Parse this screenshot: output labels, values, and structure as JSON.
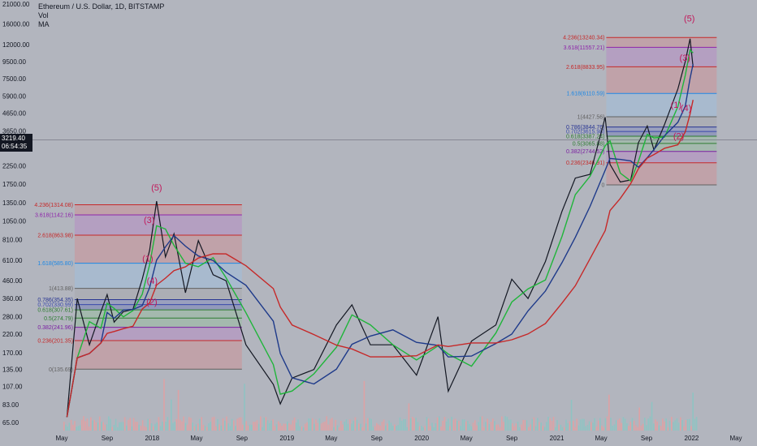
{
  "legend": {
    "title": "Ethereum / U.S. Dollar, 1D, BITSTAMP",
    "vol": "Vol",
    "ma": "MA"
  },
  "price_badge": {
    "price": "3219.40",
    "countdown": "06:54:35"
  },
  "colors": {
    "background": "#b2b5be",
    "ma_short": "#1fb53a",
    "ma_mid": "#1e3a8a",
    "ma_long": "#c62828",
    "wave_label": "#c2185b",
    "fib_red": "#e57373",
    "fib_blue": "#90caf9",
    "fib_purple": "#ba68c8",
    "fib_green": "#81c784"
  },
  "chart_data": {
    "type": "line",
    "title": "Ethereum / U.S. Dollar, 1D, BITSTAMP",
    "y_scale": "log",
    "y_unit": "USD",
    "y_ticks": [
      "21000.00",
      "16000.00",
      "12000.00",
      "9500.00",
      "7500.00",
      "5900.00",
      "4650.00",
      "3650.00",
      "2850.00",
      "2250.00",
      "1750.00",
      "1350.00",
      "1050.00",
      "810.00",
      "610.00",
      "460.00",
      "360.00",
      "280.00",
      "220.00",
      "170.00",
      "135.00",
      "107.00",
      "83.00",
      "65.00"
    ],
    "x_ticks": [
      "May",
      "Sep",
      "2018",
      "May",
      "Sep",
      "2019",
      "May",
      "Sep",
      "2020",
      "May",
      "Sep",
      "2021",
      "May",
      "Sep",
      "2022",
      "May"
    ],
    "series": [
      {
        "points": [
          [
            "2017-05-15",
            70
          ],
          [
            "2017-06-12",
            360
          ],
          [
            "2017-07-15",
            190
          ],
          [
            "2017-08-15",
            300
          ],
          [
            "2017-09-01",
            380
          ],
          [
            "2017-09-20",
            260
          ],
          [
            "2017-10-15",
            300
          ],
          [
            "2017-11-10",
            310
          ],
          [
            "2017-12-05",
            470
          ],
          [
            "2017-12-25",
            700
          ],
          [
            "2018-01-13",
            1380
          ],
          [
            "2018-02-06",
            640
          ],
          [
            "2018-03-01",
            880
          ],
          [
            "2018-04-01",
            390
          ],
          [
            "2018-05-06",
            800
          ],
          [
            "2018-06-15",
            500
          ],
          [
            "2018-07-20",
            460
          ],
          [
            "2018-09-12",
            190
          ],
          [
            "2018-11-25",
            110
          ],
          [
            "2018-12-14",
            84
          ],
          [
            "2019-01-15",
            120
          ],
          [
            "2019-03-15",
            135
          ],
          [
            "2019-05-15",
            250
          ],
          [
            "2019-06-26",
            330
          ],
          [
            "2019-08-15",
            190
          ],
          [
            "2019-10-15",
            190
          ],
          [
            "2019-12-18",
            125
          ],
          [
            "2020-02-14",
            280
          ],
          [
            "2020-03-13",
            100
          ],
          [
            "2020-05-15",
            200
          ],
          [
            "2020-07-20",
            250
          ],
          [
            "2020-09-01",
            470
          ],
          [
            "2020-10-15",
            360
          ],
          [
            "2020-12-01",
            600
          ],
          [
            "2021-01-15",
            1200
          ],
          [
            "2021-02-20",
            1900
          ],
          [
            "2021-04-01",
            2000
          ],
          [
            "2021-05-12",
            4400
          ],
          [
            "2021-05-25",
            2300
          ],
          [
            "2021-06-22",
            1800
          ],
          [
            "2021-07-20",
            1850
          ],
          [
            "2021-08-10",
            3100
          ],
          [
            "2021-09-03",
            3900
          ],
          [
            "2021-09-21",
            2800
          ],
          [
            "2021-10-20",
            4000
          ],
          [
            "2021-11-25",
            6500
          ],
          [
            "2021-12-15",
            9500
          ],
          [
            "2021-12-28",
            13000
          ],
          [
            "2022-01-05",
            8800
          ]
        ]
      }
    ],
    "annotations": {
      "waves_2018": [
        "(1)",
        "(2)",
        "(3)",
        "(4)",
        "(5)"
      ],
      "waves_2022": [
        "(1)",
        "(2)",
        "(3)",
        "(4)",
        "(5)"
      ],
      "fib_levels_2018": [
        {
          "label": "4.236(1314.08)",
          "value": 1314.08
        },
        {
          "label": "3.618(1142.16)",
          "value": 1142.16
        },
        {
          "label": "2.618(863.98)",
          "value": 863.98
        },
        {
          "label": "1.618(585.80)",
          "value": 585.8
        },
        {
          "label": "1(413.88)",
          "value": 413.88
        },
        {
          "label": "0.786(354.35)",
          "value": 354.35
        },
        {
          "label": "0.702(330.99)",
          "value": 330.99
        },
        {
          "label": "0.618(307.61)",
          "value": 307.61
        },
        {
          "label": "0.5(274.79)",
          "value": 274.79
        },
        {
          "label": "0.382(241.96)",
          "value": 241.96
        },
        {
          "label": "0.236(201.35)",
          "value": 201.35
        },
        {
          "label": "0(135.69)",
          "value": 135.69
        }
      ],
      "fib_levels_2022": [
        {
          "label": "4.236(13240.34)",
          "value": 13240.34
        },
        {
          "label": "3.618(11557.21)",
          "value": 11557.21
        },
        {
          "label": "2.618(8833.95)",
          "value": 8833.95
        },
        {
          "label": "1.618(6110.59)",
          "value": 6110.59
        },
        {
          "label": "1(4427.56)",
          "value": 4427.56
        },
        {
          "label": "0.786(3844.76)",
          "value": 3844.76
        },
        {
          "label": "0.702(3615.98)",
          "value": 3615.98
        },
        {
          "label": "0.618(3387.24)",
          "value": 3387.24
        },
        {
          "label": "0.5(3065.88)",
          "value": 3065.88
        },
        {
          "label": "0.382(2744.52)",
          "value": 2744.52
        },
        {
          "label": "0.236(2346.91)",
          "value": 2346.91
        },
        {
          "label": "0",
          "value": 1728.74
        }
      ]
    },
    "grid": false,
    "legend_placement": "top-left"
  }
}
